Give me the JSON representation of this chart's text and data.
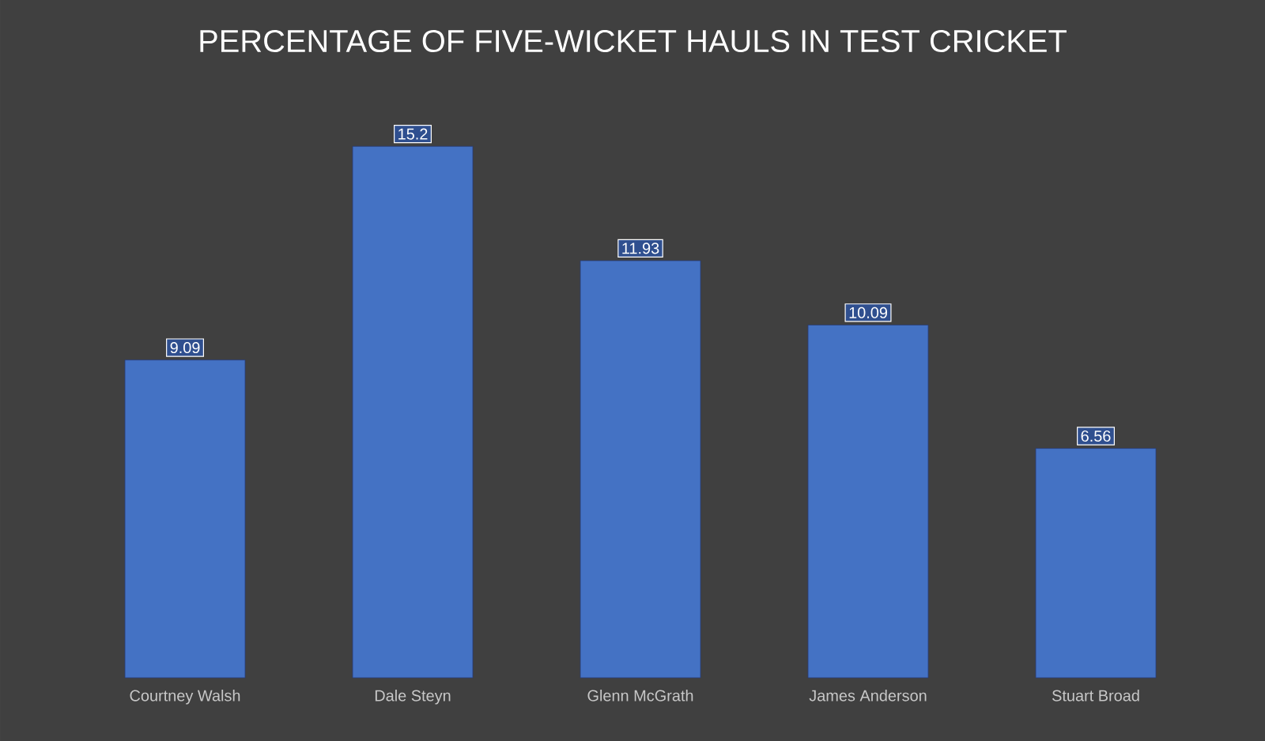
{
  "chart_data": {
    "type": "bar",
    "title": "PERCENTAGE OF FIVE-WICKET HAULS IN TEST CRICKET",
    "categories": [
      "Courtney Walsh",
      "Dale Steyn",
      "Glenn McGrath",
      "James Anderson",
      "Stuart Broad"
    ],
    "values": [
      9.09,
      15.2,
      11.93,
      10.09,
      6.56
    ],
    "color": "#4472c4",
    "data_labels": true
  }
}
